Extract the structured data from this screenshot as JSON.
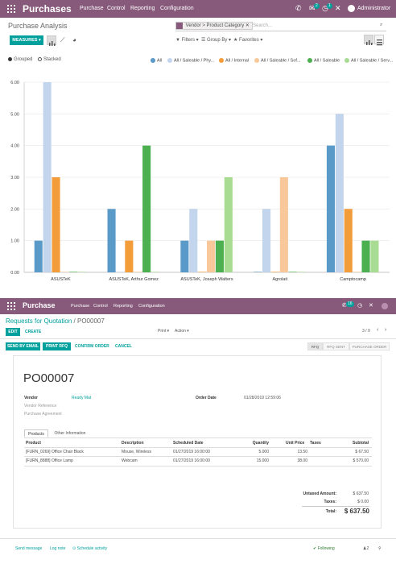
{
  "colors": {
    "brand": "#875a7b",
    "accent": "#00a09d"
  },
  "top_nav": {
    "app_name": "Purchases",
    "menu": [
      "Purchase",
      "Control",
      "Reporting",
      "Configuration"
    ],
    "badges": [
      "2",
      "1"
    ],
    "user": "Administrator",
    "icons": [
      "apps-grid-icon",
      "phone-icon",
      "messages-icon",
      "activity-icon",
      "close-icon",
      "avatar"
    ]
  },
  "control_panel": {
    "title": "Purchase Analysis",
    "facet": "Vendor > Product Category",
    "search_placeholder": "Search...",
    "measures": "MEASURES ▾",
    "filters": "▼ Filters ▾",
    "group_by": "☰ Group By ▾",
    "favorites": "★ Favorites ▾",
    "grouped": "Grouped",
    "stacked": "Stacked"
  },
  "chart_data": {
    "type": "bar",
    "title": "",
    "xlabel": "",
    "ylabel": "",
    "ylim": [
      0,
      6
    ],
    "yticks": [
      "0.00",
      "1.00",
      "2.00",
      "3.00",
      "4.00",
      "5.00",
      "6.00"
    ],
    "grid": true,
    "legend_position": "top-right",
    "categories": [
      "ASUSTeK",
      "ASUSTeK, Arthur Gomez",
      "ASUSTeK, Joseph Walters",
      "Agrolait",
      "Camptocamp"
    ],
    "series": [
      {
        "name": "All",
        "color": "#5a9ac8",
        "values": [
          1,
          2,
          1,
          0,
          4
        ]
      },
      {
        "name": "All / Saleable / Phy...",
        "color": "#c3d5ec",
        "values": [
          6,
          0,
          2,
          2,
          5
        ]
      },
      {
        "name": "All / Internal",
        "color": "#f39c3a",
        "values": [
          3,
          1,
          0,
          0,
          2
        ]
      },
      {
        "name": "All / Saleable / Sof...",
        "color": "#f8c89a",
        "values": [
          0,
          0,
          1,
          3,
          0
        ]
      },
      {
        "name": "All / Saleable",
        "color": "#4caf50",
        "values": [
          0,
          4,
          1,
          0,
          1
        ]
      },
      {
        "name": "All / Saleable / Serv...",
        "color": "#a9dc93",
        "values": [
          0,
          0,
          3,
          0,
          1
        ]
      }
    ]
  },
  "rfq_nav": {
    "app_name": "Purchase",
    "menu": [
      "Purchase",
      "Control",
      "Reporting",
      "Configuration"
    ],
    "badge": "16"
  },
  "rfq": {
    "breadcrumb_parent": "Requests for Quotation",
    "breadcrumb_sep": "/",
    "breadcrumb_current": "PO00007",
    "edit": "EDIT",
    "create": "CREATE",
    "print": "Print ▾",
    "action": "Action ▾",
    "pager": "3 / 9",
    "buttons": [
      "SEND BY EMAIL",
      "PRINT RFQ",
      "CONFIRM ORDER",
      "CANCEL"
    ],
    "statuses": [
      "RFQ",
      "RFQ SENT",
      "PURCHASE ORDER"
    ],
    "name": "PO00007",
    "vendor_label": "Vendor",
    "vendor_value": "Ready Mat",
    "vendor_ref_label": "Vendor Reference",
    "agreement_label": "Purchase Agreement",
    "order_date_label": "Order Date",
    "order_date_value": "01/28/2019 12:59:06",
    "tabs": [
      "Products",
      "Other Information"
    ],
    "table_headers": [
      "Product",
      "Description",
      "Scheduled Date",
      "Quantity",
      "Unit Price",
      "Taxes",
      "Subtotal"
    ],
    "lines": [
      {
        "product": "[FURN_0269] Office Chair Black",
        "description": "Mouse, Wireless",
        "date": "01/27/2019 16:00:00",
        "qty": "5.000",
        "price": "13.50",
        "taxes": "",
        "subtotal": "$ 67.50"
      },
      {
        "product": "[FURN_8888] Office Lamp",
        "description": "Webcam",
        "date": "01/27/2019 16:00:00",
        "qty": "15.000",
        "price": "38.00",
        "taxes": "",
        "subtotal": "$ 570.00"
      }
    ],
    "untaxed_label": "Untaxed Amount:",
    "untaxed_value": "$ 637.50",
    "taxes_label": "Taxes:",
    "taxes_value": "$ 0.00",
    "total_label": "Total:",
    "total_value": "$ 637.50",
    "chatter": [
      "Send message",
      "Log note",
      "⊙ Schedule activity"
    ],
    "following": "✔ Following",
    "followers": "♟2"
  }
}
